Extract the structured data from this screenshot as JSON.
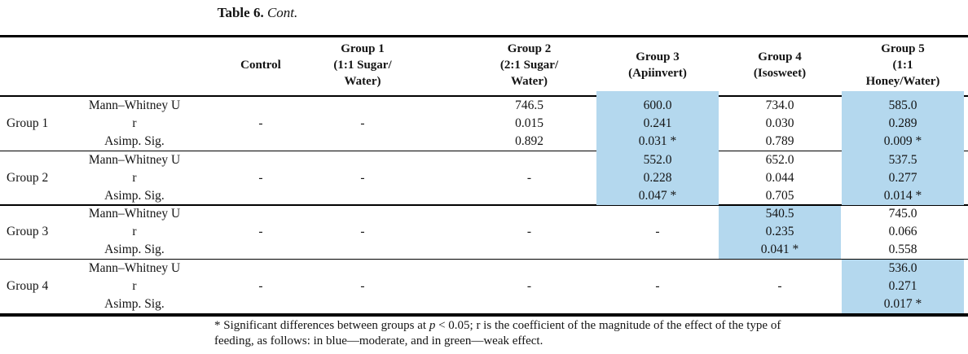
{
  "title": {
    "prefix": "Table 6.",
    "cont": "Cont."
  },
  "colors": {
    "highlight": "#B4D8EE"
  },
  "table": {
    "stat_rows": [
      "Mann–Whitney U",
      "r",
      "Asimp. Sig."
    ],
    "columns": [
      {
        "id": "control",
        "label": "Control"
      },
      {
        "id": "group1",
        "label": "Group 1\n(1:1 Sugar/\nWater)"
      },
      {
        "id": "group2",
        "label": "Group 2\n(2:1 Sugar/\nWater)"
      },
      {
        "id": "group3",
        "label": "Group 3\n(Apiinvert)"
      },
      {
        "id": "group4",
        "label": "Group 4\n(Isosweet)"
      },
      {
        "id": "group5",
        "label": "Group 5\n(1:1\nHoney/Water)"
      }
    ],
    "blocks": [
      {
        "label": "Group 1",
        "cells": {
          "control": {
            "dash": "-"
          },
          "group1": {
            "dash": "-"
          },
          "group2": {
            "values": [
              "746.5",
              "0.015",
              "0.892"
            ],
            "highlight": false
          },
          "group3": {
            "values": [
              "600.0",
              "0.241",
              "0.031 *"
            ],
            "highlight": true
          },
          "group4": {
            "values": [
              "734.0",
              "0.030",
              "0.789"
            ],
            "highlight": false
          },
          "group5": {
            "values": [
              "585.0",
              "0.289",
              "0.009 *"
            ],
            "highlight": true
          }
        }
      },
      {
        "label": "Group 2",
        "cells": {
          "control": {
            "dash": "-"
          },
          "group1": {
            "dash": "-"
          },
          "group2": {
            "dash": "-"
          },
          "group3": {
            "values": [
              "552.0",
              "0.228",
              "0.047 *"
            ],
            "highlight": true
          },
          "group4": {
            "values": [
              "652.0",
              "0.044",
              "0.705"
            ],
            "highlight": false
          },
          "group5": {
            "values": [
              "537.5",
              "0.277",
              "0.014 *"
            ],
            "highlight": true
          }
        }
      },
      {
        "label": "Group 3",
        "cells": {
          "control": {
            "dash": "-"
          },
          "group1": {
            "dash": "-"
          },
          "group2": {
            "dash": "-"
          },
          "group3": {
            "dash": "-"
          },
          "group4": {
            "values": [
              "540.5",
              "0.235",
              "0.041 *"
            ],
            "highlight": true
          },
          "group5": {
            "values": [
              "745.0",
              "0.066",
              "0.558"
            ],
            "highlight": false
          }
        }
      },
      {
        "label": "Group 4",
        "cells": {
          "control": {
            "dash": "-"
          },
          "group1": {
            "dash": "-"
          },
          "group2": {
            "dash": "-"
          },
          "group3": {
            "dash": "-"
          },
          "group4": {
            "dash": "-"
          },
          "group5": {
            "values": [
              "536.0",
              "0.271",
              "0.017 *"
            ],
            "highlight": true
          }
        }
      }
    ]
  },
  "footnote": {
    "line1_pre": "* Significant differences between groups at ",
    "line1_p": "p",
    "line1_post": " < 0.05; r is the coefficient of the magnitude of the effect of the type of",
    "line2": "feeding, as follows: in blue—moderate, and in green—weak effect."
  }
}
